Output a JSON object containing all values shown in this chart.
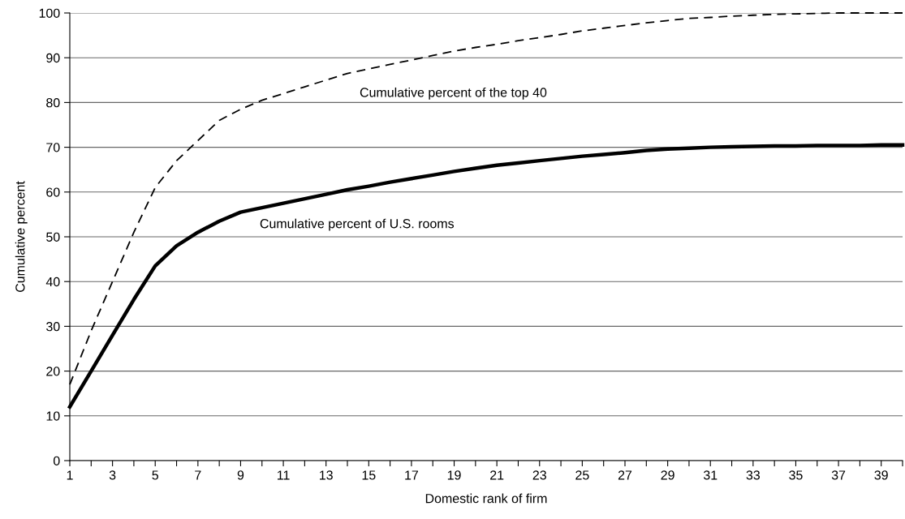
{
  "chart_data": {
    "type": "line",
    "xlabel": "Domestic rank of firm",
    "ylabel": "Cumulative percent",
    "x": [
      1,
      2,
      3,
      4,
      5,
      6,
      7,
      8,
      9,
      10,
      11,
      12,
      13,
      14,
      15,
      16,
      17,
      18,
      19,
      20,
      21,
      22,
      23,
      24,
      25,
      26,
      27,
      28,
      29,
      30,
      31,
      32,
      33,
      34,
      35,
      36,
      37,
      38,
      39,
      40
    ],
    "series": [
      {
        "name": "Cumulative percent of the top 40",
        "color": "#000000",
        "line_style": "dashed",
        "values": [
          17,
          29,
          40,
          51,
          61,
          67,
          71.5,
          76,
          78.5,
          80.5,
          82,
          83.5,
          85,
          86.5,
          87.5,
          88.5,
          89.5,
          90.5,
          91.5,
          92.3,
          93,
          93.8,
          94.5,
          95.2,
          96,
          96.6,
          97.2,
          97.8,
          98.3,
          98.8,
          99,
          99.3,
          99.5,
          99.7,
          99.8,
          99.9,
          100,
          100,
          100,
          100
        ]
      },
      {
        "name": "Cumulative percent of U.S. rooms",
        "color": "#000000",
        "line_style": "solid",
        "values": [
          12,
          20,
          28,
          36,
          43.5,
          48,
          51,
          53.5,
          55.5,
          56.5,
          57.5,
          58.5,
          59.5,
          60.5,
          61.3,
          62.2,
          63,
          63.8,
          64.6,
          65.3,
          66,
          66.5,
          67,
          67.5,
          68,
          68.4,
          68.8,
          69.3,
          69.6,
          69.8,
          70,
          70.1,
          70.2,
          70.3,
          70.3,
          70.4,
          70.4,
          70.4,
          70.5,
          70.5
        ]
      }
    ],
    "xlim": [
      1,
      40
    ],
    "xticks": [
      1,
      {
        "value": 2,
        "label": null
      },
      3,
      {
        "value": 4,
        "label": null
      },
      5,
      {
        "value": 6,
        "label": null
      },
      7,
      {
        "value": 8,
        "label": null
      },
      9,
      {
        "value": 10,
        "label": null
      },
      11,
      {
        "value": 12,
        "label": null
      },
      13,
      {
        "value": 14,
        "label": null
      },
      15,
      {
        "value": 16,
        "label": null
      },
      17,
      {
        "value": 18,
        "label": null
      },
      19,
      {
        "value": 20,
        "label": null
      },
      21,
      {
        "value": 22,
        "label": null
      },
      23,
      {
        "value": 24,
        "label": null
      },
      25,
      {
        "value": 26,
        "label": null
      },
      27,
      {
        "value": 28,
        "label": null
      },
      29,
      {
        "value": 30,
        "label": null
      },
      31,
      {
        "value": 32,
        "label": null
      },
      33,
      {
        "value": 34,
        "label": null
      },
      35,
      {
        "value": 36,
        "label": null
      },
      37,
      {
        "value": 38,
        "label": null
      },
      39,
      {
        "value": 40,
        "label": null
      }
    ],
    "ylim": [
      0,
      100
    ],
    "yticks": [
      0,
      10,
      20,
      30,
      40,
      50,
      60,
      70,
      80,
      90,
      100
    ],
    "grid": "y",
    "legend": false
  }
}
